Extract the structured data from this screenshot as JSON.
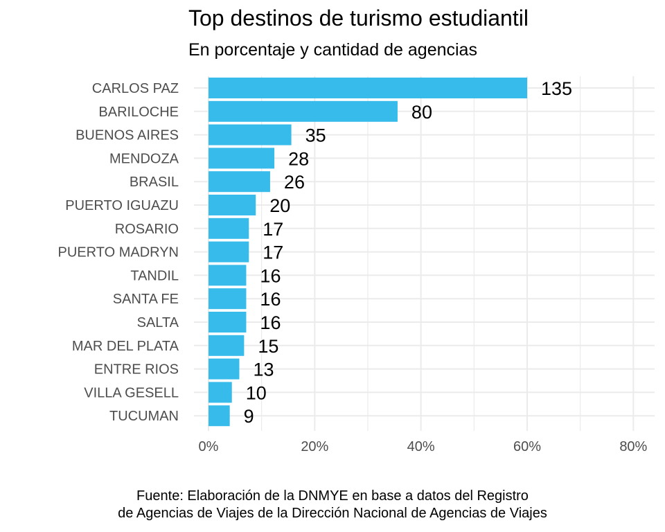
{
  "chart_data": {
    "type": "bar",
    "orientation": "horizontal",
    "title": "Top destinos de turismo estudiantil",
    "subtitle": "En porcentaje y cantidad de agencias",
    "categories": [
      "CARLOS PAZ",
      "BARILOCHE",
      "BUENOS AIRES",
      "MENDOZA",
      "BRASIL",
      "PUERTO IGUAZU",
      "ROSARIO",
      "PUERTO MADRYN",
      "TANDIL",
      "SANTA FE",
      "SALTA",
      "MAR DEL PLATA",
      "ENTRE RIOS",
      "VILLA GESELL",
      "TUCUMAN"
    ],
    "values": [
      60.0,
      35.6,
      15.6,
      12.4,
      11.6,
      8.9,
      7.6,
      7.6,
      7.1,
      7.1,
      7.1,
      6.7,
      5.8,
      4.4,
      4.0
    ],
    "data_labels": [
      "135",
      "80",
      "35",
      "28",
      "26",
      "20",
      "17",
      "17",
      "16",
      "16",
      "16",
      "15",
      "13",
      "10",
      "9"
    ],
    "x_ticks": [
      "0%",
      "20%",
      "40%",
      "60%",
      "80%"
    ],
    "xlim": [
      0,
      84
    ],
    "bar_color": "#37BBEB",
    "grid": true,
    "caption_lines": [
      "Fuente: Elaboración de la DNMYE en base a datos del Registro",
      "de Agencias de Viajes de la Dirección Nacional de Agencias de Viajes"
    ]
  }
}
